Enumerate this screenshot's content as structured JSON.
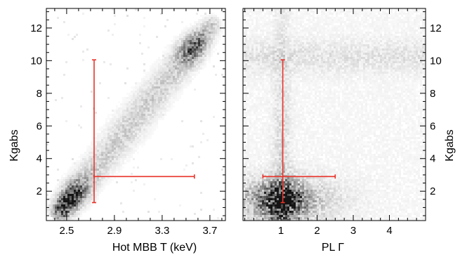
{
  "chart_data": [
    {
      "type": "heatmap",
      "panel": "left",
      "xlabel": "Hot MBB T (keV)",
      "ylabel": "Kgabs",
      "xlim": [
        2.33,
        3.83
      ],
      "ylim": [
        0.2,
        13.2
      ],
      "xticks_major": [
        2.5,
        2.9,
        3.3,
        3.7
      ],
      "xtick_labels": [
        "2.5",
        "2.9",
        "3.3",
        "3.7"
      ],
      "yticks_major": [
        2,
        4,
        6,
        8,
        10,
        12
      ],
      "ytick_labels": [
        "2",
        "4",
        "6",
        "8",
        "10",
        "12"
      ],
      "density_ridge": {
        "from": {
          "x": 2.45,
          "y": 0.9
        },
        "to": {
          "x": 3.7,
          "y": 12.2
        },
        "peak": {
          "x": 2.55,
          "y": 1.4
        },
        "secondary_peak": {
          "x": 3.55,
          "y": 10.2
        }
      },
      "marker": {
        "x": 2.73,
        "y": 2.9,
        "x_err": [
          2.73,
          3.57
        ],
        "y_err": [
          1.3,
          10.05
        ]
      }
    },
    {
      "type": "heatmap",
      "panel": "right",
      "xlabel": "PL  Γ",
      "ylabel": "Kgabs",
      "xlim": [
        -0.05,
        5.0
      ],
      "ylim": [
        0.2,
        13.2
      ],
      "xticks_major": [
        1,
        2,
        3,
        4
      ],
      "xtick_labels": [
        "1",
        "2",
        "3",
        "4"
      ],
      "yticks_major": [
        2,
        4,
        6,
        8,
        10,
        12
      ],
      "ytick_labels": [
        "2",
        "4",
        "6",
        "8",
        "10",
        "12"
      ],
      "density_ridge": {
        "peak": {
          "x": 1.0,
          "y": 1.5
        },
        "plateau_y": [
          9.5,
          11.0
        ],
        "plateau_x": [
          0.1,
          4.9
        ]
      },
      "marker": {
        "x": 1.05,
        "y": 2.9,
        "x_err": [
          0.5,
          2.5
        ],
        "y_err": [
          1.3,
          10.05
        ]
      }
    }
  ]
}
